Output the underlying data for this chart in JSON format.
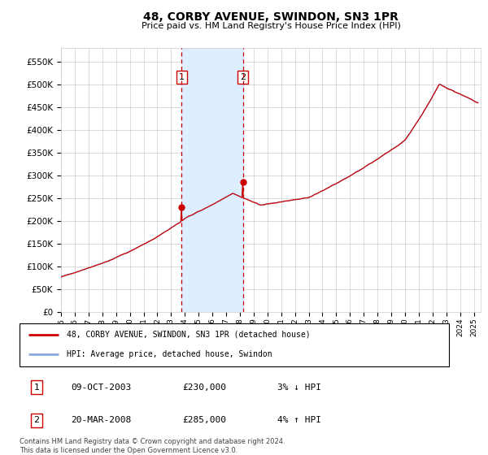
{
  "title": "48, CORBY AVENUE, SWINDON, SN3 1PR",
  "subtitle": "Price paid vs. HM Land Registry's House Price Index (HPI)",
  "ylabel_ticks": [
    "£0",
    "£50K",
    "£100K",
    "£150K",
    "£200K",
    "£250K",
    "£300K",
    "£350K",
    "£400K",
    "£450K",
    "£500K",
    "£550K"
  ],
  "ytick_values": [
    0,
    50000,
    100000,
    150000,
    200000,
    250000,
    300000,
    350000,
    400000,
    450000,
    500000,
    550000
  ],
  "ylim": [
    0,
    580000
  ],
  "xlim_start": 1995.0,
  "xlim_end": 2025.5,
  "hpi_color": "#88aadd",
  "price_color": "#cc0000",
  "purchase1_date": 2003.77,
  "purchase1_price": 230000,
  "purchase2_date": 2008.22,
  "purchase2_price": 285000,
  "shade_color": "#ddeeff",
  "legend_label1": "48, CORBY AVENUE, SWINDON, SN3 1PR (detached house)",
  "legend_label2": "HPI: Average price, detached house, Swindon",
  "table_row1_num": "1",
  "table_row1_date": "09-OCT-2003",
  "table_row1_price": "£230,000",
  "table_row1_hpi": "3% ↓ HPI",
  "table_row2_num": "2",
  "table_row2_date": "20-MAR-2008",
  "table_row2_price": "£285,000",
  "table_row2_hpi": "4% ↑ HPI",
  "footer": "Contains HM Land Registry data © Crown copyright and database right 2024.\nThis data is licensed under the Open Government Licence v3.0.",
  "background_color": "#ffffff",
  "grid_color": "#cccccc"
}
